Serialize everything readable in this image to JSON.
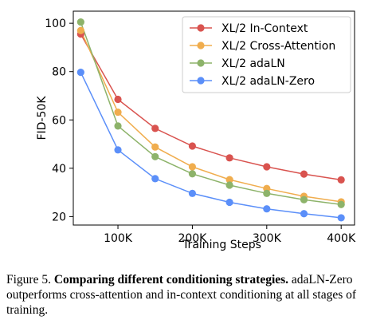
{
  "chart_data": {
    "type": "line",
    "title": "",
    "xlabel": "Training Steps",
    "ylabel": "FID-50K",
    "x": [
      50000,
      100000,
      150000,
      200000,
      250000,
      300000,
      350000,
      400000
    ],
    "xticks": [
      100000,
      200000,
      300000,
      400000
    ],
    "xtick_labels": [
      "100K",
      "200K",
      "300K",
      "400K"
    ],
    "yticks": [
      20,
      40,
      60,
      80,
      100
    ],
    "xlim": [
      40000,
      418000
    ],
    "ylim": [
      16.5,
      105
    ],
    "grid": false,
    "legend_position": "top-right",
    "series": [
      {
        "name": "XL/2 In-Context",
        "color": "#d9534f",
        "values": [
          95.5,
          68.5,
          56.5,
          49.2,
          44.3,
          40.6,
          37.6,
          35.2
        ]
      },
      {
        "name": "XL/2 Cross-Attention",
        "color": "#f0ad4e",
        "values": [
          97,
          63.2,
          48.8,
          40.6,
          35.3,
          31.6,
          28.4,
          26.1
        ]
      },
      {
        "name": "XL/2 adaLN",
        "color": "#8db36a",
        "values": [
          100.5,
          57.5,
          44.8,
          37.7,
          33,
          29.6,
          27,
          25
        ]
      },
      {
        "name": "XL/2 adaLN-Zero",
        "color": "#5b8ff9",
        "values": [
          79.7,
          47.6,
          35.7,
          29.6,
          25.9,
          23.2,
          21.2,
          19.5
        ]
      }
    ]
  },
  "caption": {
    "prefix": "Figure 5.",
    "bold": "Comparing different conditioning strategies.",
    "rest": "adaLN-Zero outperforms cross-attention and in-context conditioning at all stages of training."
  }
}
